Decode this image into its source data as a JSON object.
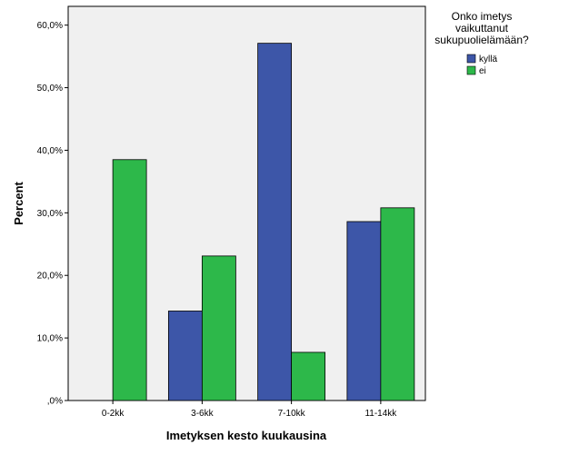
{
  "chart_data": {
    "type": "bar",
    "xlabel": "Imetyksen kesto kuukausina",
    "ylabel": "Percent",
    "ylim": [
      0,
      63
    ],
    "yticks": [
      0,
      10,
      20,
      30,
      40,
      50,
      60
    ],
    "ytick_labels": [
      ",0%",
      "10,0%",
      "20,0%",
      "30,0%",
      "40,0%",
      "50,0%",
      "60,0%"
    ],
    "categories": [
      "0-2kk",
      "3-6kk",
      "7-10kk",
      "11-14kk"
    ],
    "series": [
      {
        "name": "kyllä",
        "color": "#3d56a8",
        "values": [
          0,
          14.3,
          57.1,
          28.6
        ]
      },
      {
        "name": "ei",
        "color": "#2db84a",
        "values": [
          38.5,
          23.1,
          7.7,
          30.8
        ]
      }
    ],
    "legend": {
      "title_lines": [
        "Onko imetys",
        "vaikuttanut",
        "sukupuolielämään?"
      ],
      "placement": "top-right"
    },
    "grid": false,
    "plot_background": "#f0f0f0"
  }
}
